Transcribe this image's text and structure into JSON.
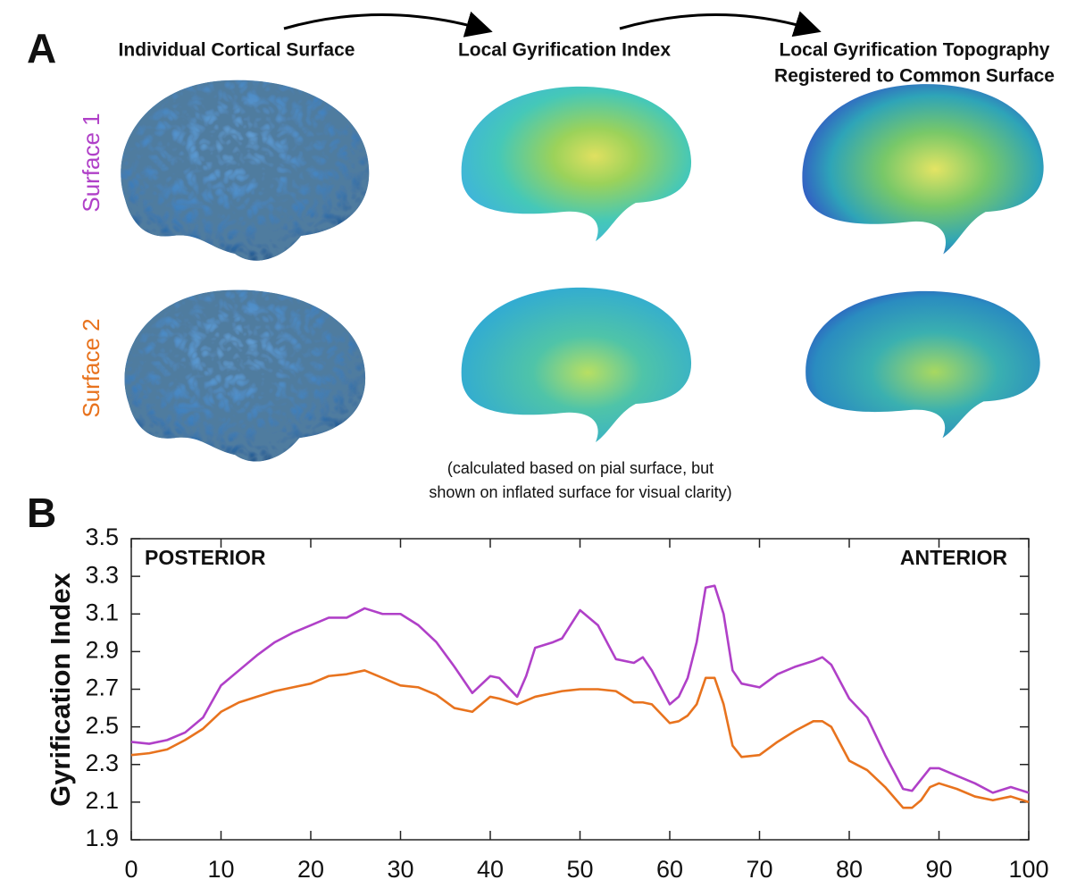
{
  "panel_a": {
    "label": "A",
    "columns": [
      {
        "title_lines": [
          "Individual Cortical Surface"
        ]
      },
      {
        "title_lines": [
          "Local Gyrification Index"
        ]
      },
      {
        "title_lines": [
          "Local Gyrification Topography",
          "Registered to Common Surface"
        ]
      }
    ],
    "row_labels": [
      "Surface 1",
      "Surface 2"
    ],
    "note_lines": [
      "(calculated based on pial surface, but",
      "shown on inflated surface for visual clarity)"
    ]
  },
  "chart_data": {
    "type": "line",
    "panel_label": "B",
    "y_label": "Gyrification Index",
    "annotations": [
      "POSTERIOR",
      "ANTERIOR"
    ],
    "x": [
      0,
      2,
      4,
      6,
      8,
      10,
      12,
      14,
      16,
      18,
      20,
      22,
      24,
      26,
      28,
      30,
      32,
      34,
      36,
      38,
      40,
      41,
      43,
      44,
      45,
      47,
      48,
      50,
      52,
      54,
      56,
      57,
      58,
      60,
      61,
      62,
      63,
      64,
      65,
      66,
      67,
      68,
      70,
      72,
      74,
      76,
      77,
      78,
      80,
      82,
      84,
      86,
      87,
      88,
      89,
      90,
      92,
      94,
      96,
      98,
      100
    ],
    "series": [
      {
        "color": "#b040c8",
        "values": [
          2.42,
          2.41,
          2.43,
          2.47,
          2.55,
          2.72,
          2.8,
          2.88,
          2.95,
          3.0,
          3.04,
          3.08,
          3.08,
          3.13,
          3.1,
          3.1,
          3.04,
          2.95,
          2.82,
          2.68,
          2.77,
          2.76,
          2.66,
          2.77,
          2.92,
          2.95,
          2.97,
          3.12,
          3.04,
          2.86,
          2.84,
          2.87,
          2.8,
          2.62,
          2.66,
          2.76,
          2.95,
          3.24,
          3.25,
          3.1,
          2.8,
          2.73,
          2.71,
          2.78,
          2.82,
          2.85,
          2.87,
          2.83,
          2.65,
          2.55,
          2.35,
          2.17,
          2.16,
          2.22,
          2.28,
          2.28,
          2.24,
          2.2,
          2.15,
          2.18,
          2.15
        ]
      },
      {
        "color": "#e8731e",
        "values": [
          2.35,
          2.36,
          2.38,
          2.43,
          2.49,
          2.58,
          2.63,
          2.66,
          2.69,
          2.71,
          2.73,
          2.77,
          2.78,
          2.8,
          2.76,
          2.72,
          2.71,
          2.67,
          2.6,
          2.58,
          2.66,
          2.65,
          2.62,
          2.64,
          2.66,
          2.68,
          2.69,
          2.7,
          2.7,
          2.69,
          2.63,
          2.63,
          2.62,
          2.52,
          2.53,
          2.56,
          2.62,
          2.76,
          2.76,
          2.62,
          2.4,
          2.34,
          2.35,
          2.42,
          2.48,
          2.53,
          2.53,
          2.5,
          2.32,
          2.27,
          2.18,
          2.07,
          2.07,
          2.11,
          2.18,
          2.2,
          2.17,
          2.13,
          2.11,
          2.13,
          2.1
        ]
      }
    ],
    "xlim": [
      0,
      100
    ],
    "xticks": [
      0,
      10,
      20,
      30,
      40,
      50,
      60,
      70,
      80,
      90,
      100
    ],
    "ylim": [
      1.9,
      3.5
    ],
    "yticks": [
      1.9,
      2.1,
      2.3,
      2.5,
      2.7,
      2.9,
      3.1,
      3.3,
      3.5
    ]
  }
}
